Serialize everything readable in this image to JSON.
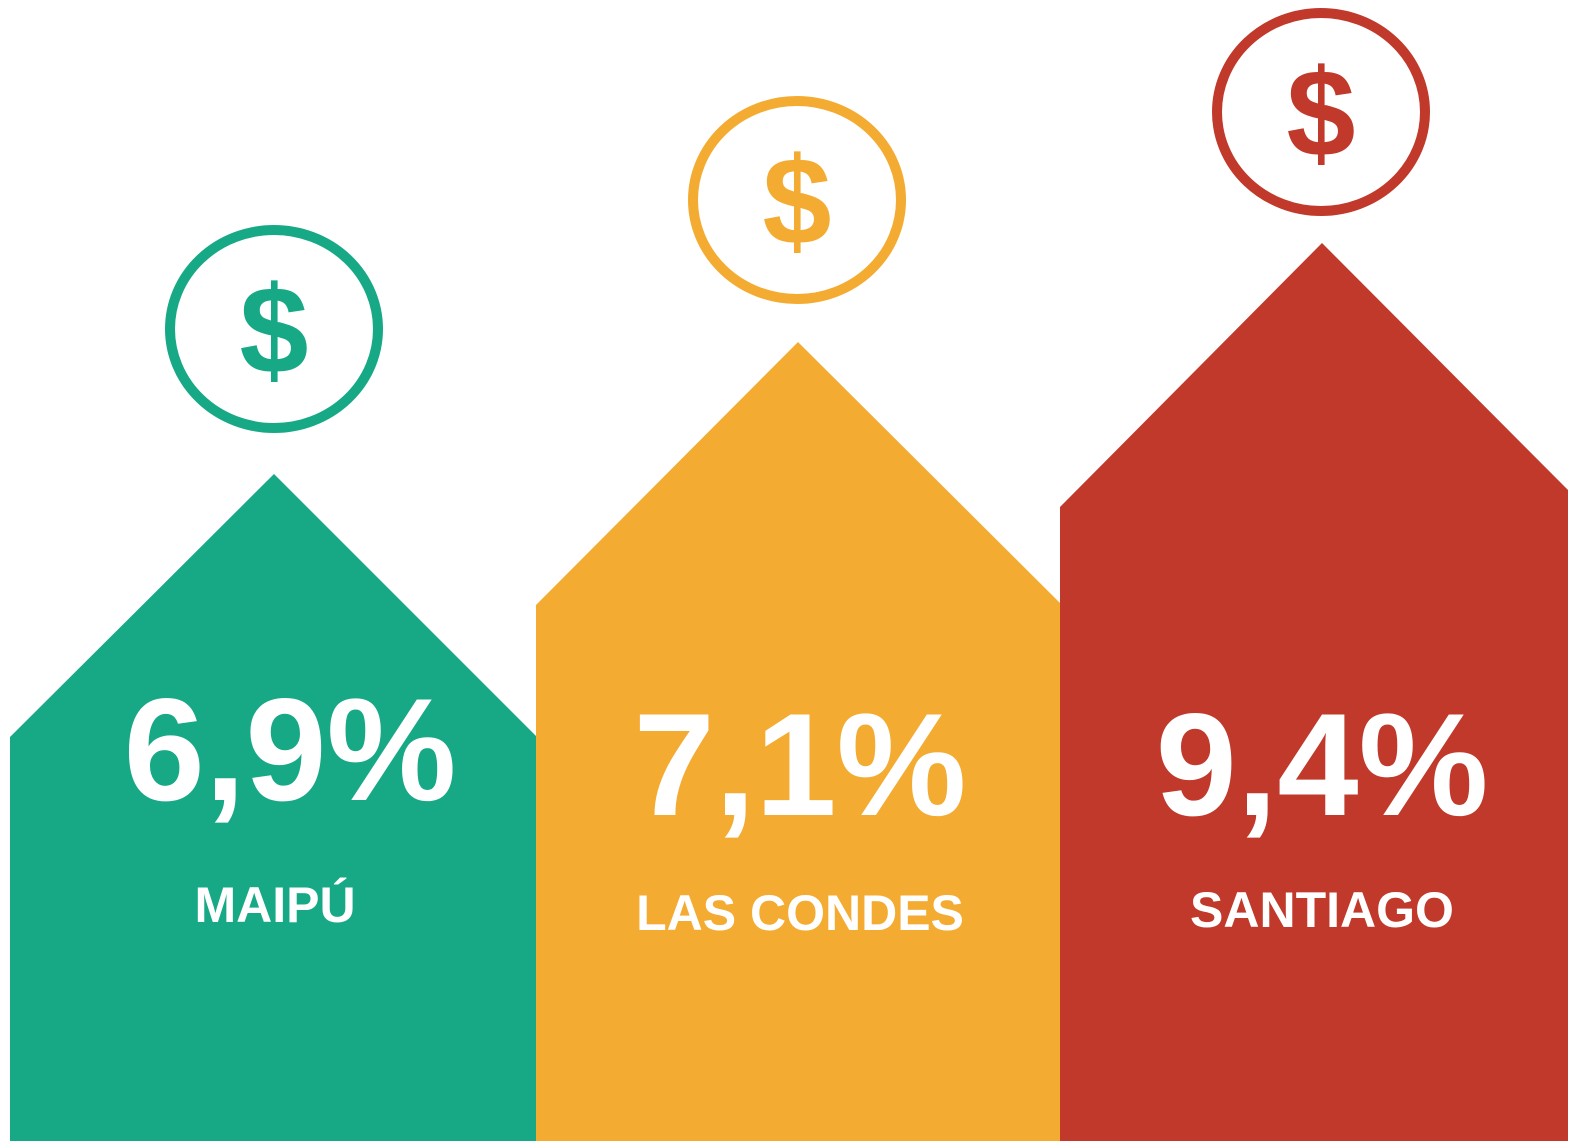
{
  "items": [
    {
      "symbol": "$",
      "value": "6,9%",
      "name": "MAIPÚ",
      "color": "#17a985"
    },
    {
      "symbol": "$",
      "value": "7,1%",
      "name": "LAS CONDES",
      "color": "#f4ab32"
    },
    {
      "symbol": "$",
      "value": "9,4%",
      "name": "SANTIAGO",
      "color": "#c0392b"
    }
  ]
}
